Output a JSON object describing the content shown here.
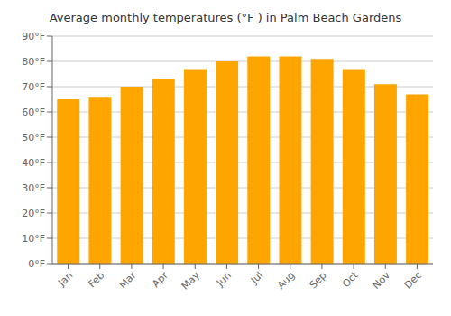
{
  "chart_data": {
    "type": "bar",
    "title": "Average monthly temperatures (°F ) in Palm Beach Gardens",
    "categories": [
      "Jan",
      "Feb",
      "Mar",
      "Apr",
      "May",
      "Jun",
      "Jul",
      "Aug",
      "Sep",
      "Oct",
      "Nov",
      "Dec"
    ],
    "values": [
      65,
      66,
      70,
      73,
      77,
      80,
      82,
      82,
      81,
      77,
      71,
      67
    ],
    "color": "#FFA500",
    "ylim": [
      0,
      90
    ],
    "yticks": [
      {
        "value": 0,
        "label": "0°F"
      },
      {
        "value": 10,
        "label": "10°F"
      },
      {
        "value": 20,
        "label": "20°F"
      },
      {
        "value": 30,
        "label": "30°F"
      },
      {
        "value": 40,
        "label": "40°F"
      },
      {
        "value": 50,
        "label": "50°F"
      },
      {
        "value": 60,
        "label": "60°F"
      },
      {
        "value": 70,
        "label": "70°F"
      },
      {
        "value": 80,
        "label": "80°F"
      },
      {
        "value": 90,
        "label": "90°F"
      }
    ],
    "grid": true
  }
}
